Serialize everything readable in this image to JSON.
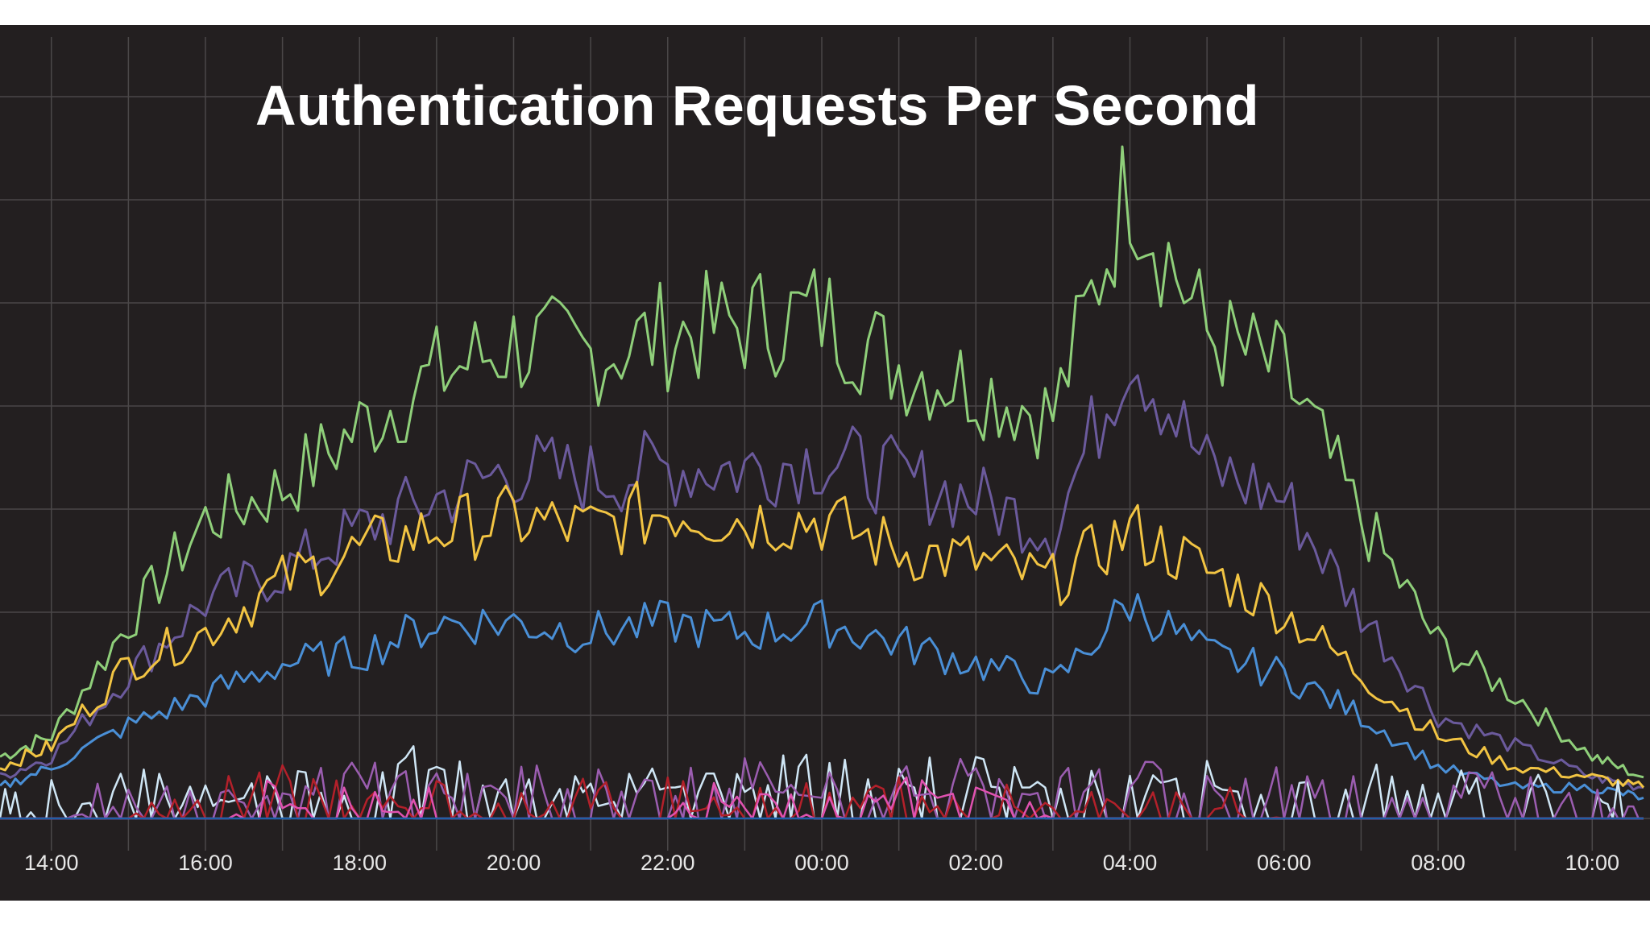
{
  "chart_data": {
    "type": "line",
    "title": "Authentication Requests Per Second",
    "xlabel": "",
    "ylabel": "",
    "x_ticks": [
      "14:00",
      "16:00",
      "18:00",
      "20:00",
      "22:00",
      "00:00",
      "02:00",
      "04:00",
      "06:00",
      "08:00",
      "10:00"
    ],
    "xlim": [
      "13:20",
      "10:45"
    ],
    "ylim": [
      0,
      8
    ],
    "grid": true,
    "legend": "none",
    "x": [
      "13:20",
      "14:00",
      "15:00",
      "16:00",
      "17:00",
      "18:00",
      "19:00",
      "20:00",
      "21:00",
      "22:00",
      "23:00",
      "00:00",
      "01:00",
      "02:00",
      "03:00",
      "04:00",
      "05:00",
      "06:00",
      "07:00",
      "08:00",
      "09:00",
      "10:00",
      "10:40"
    ],
    "series": [
      {
        "color": "#8fcf7a",
        "values": [
          0.6,
          0.8,
          1.9,
          2.9,
          3.2,
          3.8,
          4.3,
          4.6,
          4.5,
          4.7,
          4.8,
          4.9,
          4.4,
          4.2,
          3.9,
          6.2,
          4.7,
          4.3,
          2.9,
          1.7,
          1.2,
          0.6,
          0.4
        ]
      },
      {
        "color": "#6b5a9c",
        "values": [
          0.4,
          0.6,
          1.4,
          2.1,
          2.4,
          2.8,
          3.1,
          3.4,
          3.3,
          3.4,
          3.4,
          3.5,
          3.3,
          3.1,
          2.8,
          4.6,
          3.4,
          3.1,
          2.0,
          1.0,
          0.7,
          0.4,
          0.3
        ]
      },
      {
        "color": "#f2c443",
        "values": [
          0.5,
          0.7,
          1.5,
          1.8,
          2.3,
          2.6,
          2.8,
          2.9,
          2.8,
          3.0,
          2.9,
          2.9,
          2.6,
          2.5,
          2.3,
          2.8,
          2.4,
          2.0,
          1.4,
          0.8,
          0.5,
          0.4,
          0.3
        ]
      },
      {
        "color": "#4a8fd6",
        "values": [
          0.3,
          0.5,
          0.9,
          1.2,
          1.5,
          1.6,
          1.9,
          1.9,
          1.8,
          1.9,
          1.8,
          1.9,
          1.7,
          1.5,
          1.3,
          2.1,
          1.6,
          1.4,
          1.0,
          0.5,
          0.3,
          0.3,
          0.2
        ]
      },
      {
        "color": "#cfe6f5",
        "values": [
          0.0,
          0.1,
          0.2,
          0.1,
          0.3,
          0.2,
          0.5,
          0.2,
          0.1,
          0.3,
          0.2,
          0.5,
          0.3,
          0.3,
          0.3,
          0.2,
          0.3,
          0.2,
          0.3,
          0.2,
          0.3,
          0.2,
          0.0
        ]
      },
      {
        "color": "#9b5db0",
        "values": [
          0.0,
          0.0,
          0.1,
          0.2,
          0.1,
          0.3,
          0.2,
          0.2,
          0.3,
          0.2,
          0.3,
          0.2,
          0.2,
          0.3,
          0.2,
          0.3,
          0.2,
          0.2,
          0.2,
          0.2,
          0.2,
          0.1,
          0.0
        ]
      },
      {
        "color": "#b3202a",
        "values": [
          0.0,
          0.0,
          0.0,
          0.1,
          0.3,
          0.1,
          0.1,
          0.0,
          0.1,
          0.1,
          0.0,
          0.1,
          0.1,
          0.0,
          0.1,
          0.0,
          0.1,
          0.0,
          0.0,
          0.0,
          0.0,
          0.0,
          0.0
        ]
      },
      {
        "color": "#e052b0",
        "values": [
          0.0,
          0.0,
          0.0,
          0.0,
          0.1,
          0.1,
          0.0,
          0.0,
          0.0,
          0.0,
          0.1,
          0.0,
          0.1,
          0.3,
          0.0,
          0.0,
          0.0,
          0.0,
          0.0,
          0.0,
          0.0,
          0.0,
          0.0
        ]
      },
      {
        "color": "#1f5fa8",
        "values": [
          0.0,
          0.0,
          0.0,
          0.0,
          0.0,
          0.0,
          0.0,
          0.0,
          0.0,
          0.0,
          0.0,
          0.0,
          0.0,
          0.0,
          0.0,
          0.0,
          0.0,
          0.0,
          0.0,
          0.0,
          0.0,
          0.0,
          0.0
        ]
      }
    ]
  }
}
